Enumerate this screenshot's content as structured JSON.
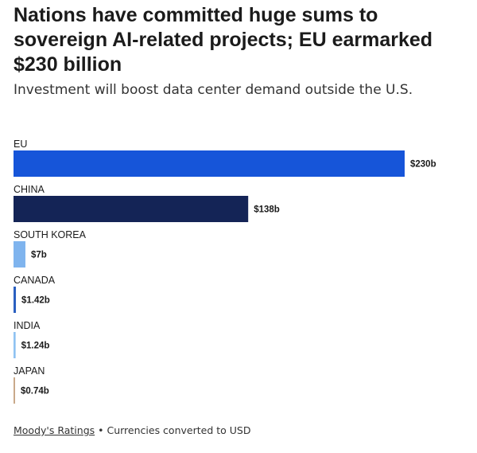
{
  "header": {
    "title": "Nations have committed huge sums to sovereign AI-related projects; EU earmarked $230 billion",
    "subtitle": "Investment will boost data center demand outside the U.S."
  },
  "footer": {
    "source": "Moody's Ratings",
    "separator": " • ",
    "note": "Currencies converted to USD"
  },
  "chart_data": {
    "type": "bar",
    "orientation": "horizontal",
    "title": "Nations have committed huge sums to sovereign AI-related projects; EU earmarked $230 billion",
    "subtitle": "Investment will boost data center demand outside the U.S.",
    "categories": [
      "EU",
      "CHINA",
      "SOUTH KOREA",
      "CANADA",
      "INDIA",
      "JAPAN"
    ],
    "values": [
      230,
      138,
      7,
      1.42,
      1.24,
      0.74
    ],
    "value_labels": [
      "$230b",
      "$138b",
      "$7b",
      "$1.42b",
      "$1.24b",
      "$0.74b"
    ],
    "colors": [
      "#1655d9",
      "#142456",
      "#7fb4ee",
      "#2a5fc0",
      "#8fc2f2",
      "#c9a98a"
    ],
    "unit": "billion USD",
    "xlim": [
      0,
      230
    ],
    "grid": false,
    "legend": "none"
  }
}
